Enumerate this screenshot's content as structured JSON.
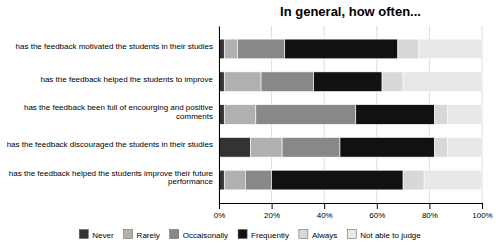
{
  "chart_data": {
    "type": "bar",
    "orientation": "horizontal",
    "stacked": true,
    "title": "In general, how often...",
    "categories": [
      "has the feedback motivated the students in their studies",
      "has the feedback helped the students to improve",
      "has the feedback been full of encourging and positive\ncomments",
      "has the feedback discouraged the students in their studies",
      "has the feedback helped the students improve their future\nperformance"
    ],
    "series": [
      {
        "name": "Never",
        "color": "#333333",
        "values": [
          2,
          2,
          2,
          12,
          2
        ]
      },
      {
        "name": "Rarely",
        "color": "#b0b0b0",
        "values": [
          5,
          14,
          12,
          12,
          8
        ]
      },
      {
        "name": "Occaisonally",
        "color": "#888888",
        "values": [
          18,
          20,
          38,
          22,
          10
        ]
      },
      {
        "name": "Frequently",
        "color": "#111111",
        "values": [
          43,
          26,
          30,
          36,
          50
        ]
      },
      {
        "name": "Always",
        "color": "#d8d8d8",
        "values": [
          8,
          8,
          5,
          5,
          8
        ]
      },
      {
        "name": "Not able to judge",
        "color": "#e8e8e8",
        "values": [
          24,
          30,
          13,
          13,
          22
        ]
      }
    ],
    "xlim": [
      0,
      100
    ],
    "xticks": [
      {
        "value": 0,
        "label": "0%"
      },
      {
        "value": 20,
        "label": "20%"
      },
      {
        "value": 40,
        "label": "40%"
      },
      {
        "value": 60,
        "label": "60%"
      },
      {
        "value": 80,
        "label": "80%"
      },
      {
        "value": 100,
        "label": "100%"
      }
    ],
    "grid": true,
    "legend": "bottom"
  }
}
